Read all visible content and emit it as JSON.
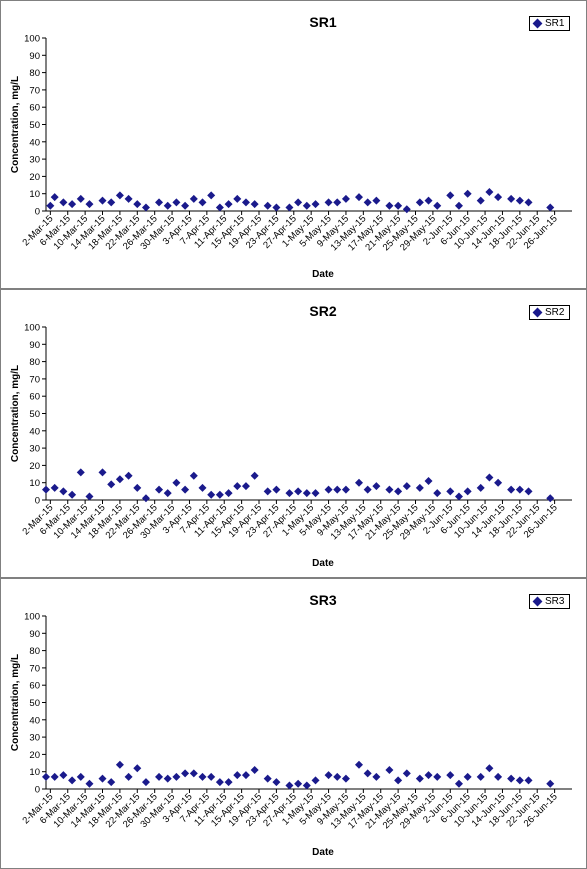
{
  "chart_data": [
    {
      "type": "scatter",
      "title": "SR1",
      "xlabel": "Date",
      "ylabel": "Concentration, mg/L",
      "ylim": [
        0,
        100
      ],
      "yticks": [
        0,
        10,
        20,
        30,
        40,
        50,
        60,
        70,
        80,
        90,
        100
      ],
      "xticks": [
        "2-Mar-15",
        "6-Mar-15",
        "10-Mar-15",
        "14-Mar-15",
        "18-Mar-15",
        "22-Mar-15",
        "26-Mar-15",
        "30-Mar-15",
        "3-Apr-15",
        "7-Apr-15",
        "11-Apr-15",
        "15-Apr-15",
        "19-Apr-15",
        "23-Apr-15",
        "27-Apr-15",
        "1-May-15",
        "5-May-15",
        "9-May-15",
        "13-May-15",
        "17-May-15",
        "21-May-15",
        "25-May-15",
        "29-May-15",
        "2-Jun-15",
        "6-Jun-15",
        "10-Jun-15",
        "14-Jun-15",
        "18-Jun-15",
        "22-Jun-15",
        "26-Jun-15"
      ],
      "grid": false,
      "legend": "top-right",
      "marker_color": "#1a1a8c",
      "series": [
        {
          "name": "SR1",
          "points": [
            {
              "x": "2-Mar-15",
              "y": 3
            },
            {
              "x": "3-Mar-15",
              "y": 8
            },
            {
              "x": "5-Mar-15",
              "y": 5
            },
            {
              "x": "7-Mar-15",
              "y": 4
            },
            {
              "x": "9-Mar-15",
              "y": 7
            },
            {
              "x": "11-Mar-15",
              "y": 4
            },
            {
              "x": "14-Mar-15",
              "y": 6
            },
            {
              "x": "16-Mar-15",
              "y": 5
            },
            {
              "x": "18-Mar-15",
              "y": 9
            },
            {
              "x": "20-Mar-15",
              "y": 7
            },
            {
              "x": "22-Mar-15",
              "y": 4
            },
            {
              "x": "24-Mar-15",
              "y": 2
            },
            {
              "x": "27-Mar-15",
              "y": 5
            },
            {
              "x": "29-Mar-15",
              "y": 3
            },
            {
              "x": "31-Mar-15",
              "y": 5
            },
            {
              "x": "2-Apr-15",
              "y": 3
            },
            {
              "x": "4-Apr-15",
              "y": 7
            },
            {
              "x": "6-Apr-15",
              "y": 5
            },
            {
              "x": "8-Apr-15",
              "y": 9
            },
            {
              "x": "10-Apr-15",
              "y": 2
            },
            {
              "x": "12-Apr-15",
              "y": 4
            },
            {
              "x": "14-Apr-15",
              "y": 7
            },
            {
              "x": "16-Apr-15",
              "y": 5
            },
            {
              "x": "18-Apr-15",
              "y": 4
            },
            {
              "x": "21-Apr-15",
              "y": 3
            },
            {
              "x": "23-Apr-15",
              "y": 2
            },
            {
              "x": "26-Apr-15",
              "y": 2
            },
            {
              "x": "28-Apr-15",
              "y": 5
            },
            {
              "x": "30-Apr-15",
              "y": 3
            },
            {
              "x": "2-May-15",
              "y": 4
            },
            {
              "x": "5-May-15",
              "y": 5
            },
            {
              "x": "7-May-15",
              "y": 5
            },
            {
              "x": "9-May-15",
              "y": 7
            },
            {
              "x": "12-May-15",
              "y": 8
            },
            {
              "x": "14-May-15",
              "y": 5
            },
            {
              "x": "16-May-15",
              "y": 6
            },
            {
              "x": "19-May-15",
              "y": 3
            },
            {
              "x": "21-May-15",
              "y": 3
            },
            {
              "x": "23-May-15",
              "y": 1
            },
            {
              "x": "26-May-15",
              "y": 5
            },
            {
              "x": "28-May-15",
              "y": 6
            },
            {
              "x": "30-May-15",
              "y": 3
            },
            {
              "x": "2-Jun-15",
              "y": 9
            },
            {
              "x": "4-Jun-15",
              "y": 3
            },
            {
              "x": "6-Jun-15",
              "y": 10
            },
            {
              "x": "9-Jun-15",
              "y": 6
            },
            {
              "x": "11-Jun-15",
              "y": 11
            },
            {
              "x": "13-Jun-15",
              "y": 8
            },
            {
              "x": "16-Jun-15",
              "y": 7
            },
            {
              "x": "18-Jun-15",
              "y": 6
            },
            {
              "x": "20-Jun-15",
              "y": 5
            },
            {
              "x": "25-Jun-15",
              "y": 2
            }
          ]
        }
      ]
    },
    {
      "type": "scatter",
      "title": "SR2",
      "xlabel": "Date",
      "ylabel": "Concentration, mg/L",
      "ylim": [
        0,
        100
      ],
      "yticks": [
        0,
        10,
        20,
        30,
        40,
        50,
        60,
        70,
        80,
        90,
        100
      ],
      "xticks": [
        "2-Mar-15",
        "6-Mar-15",
        "10-Mar-15",
        "14-Mar-15",
        "18-Mar-15",
        "22-Mar-15",
        "26-Mar-15",
        "30-Mar-15",
        "3-Apr-15",
        "7-Apr-15",
        "11-Apr-15",
        "15-Apr-15",
        "19-Apr-15",
        "23-Apr-15",
        "27-Apr-15",
        "1-May-15",
        "5-May-15",
        "9-May-15",
        "13-May-15",
        "17-May-15",
        "21-May-15",
        "25-May-15",
        "29-May-15",
        "2-Jun-15",
        "6-Jun-15",
        "10-Jun-15",
        "14-Jun-15",
        "18-Jun-15",
        "22-Jun-15",
        "26-Jun-15"
      ],
      "grid": false,
      "legend": "top-right",
      "marker_color": "#1a1a8c",
      "series": [
        {
          "name": "SR2",
          "points": [
            {
              "x": "1-Mar-15",
              "y": 6
            },
            {
              "x": "3-Mar-15",
              "y": 7
            },
            {
              "x": "5-Mar-15",
              "y": 5
            },
            {
              "x": "7-Mar-15",
              "y": 3
            },
            {
              "x": "9-Mar-15",
              "y": 16
            },
            {
              "x": "11-Mar-15",
              "y": 2
            },
            {
              "x": "14-Mar-15",
              "y": 16
            },
            {
              "x": "16-Mar-15",
              "y": 9
            },
            {
              "x": "18-Mar-15",
              "y": 12
            },
            {
              "x": "20-Mar-15",
              "y": 14
            },
            {
              "x": "22-Mar-15",
              "y": 7
            },
            {
              "x": "24-Mar-15",
              "y": 1
            },
            {
              "x": "27-Mar-15",
              "y": 6
            },
            {
              "x": "29-Mar-15",
              "y": 4
            },
            {
              "x": "31-Mar-15",
              "y": 10
            },
            {
              "x": "2-Apr-15",
              "y": 6
            },
            {
              "x": "4-Apr-15",
              "y": 14
            },
            {
              "x": "6-Apr-15",
              "y": 7
            },
            {
              "x": "8-Apr-15",
              "y": 3
            },
            {
              "x": "10-Apr-15",
              "y": 3
            },
            {
              "x": "12-Apr-15",
              "y": 4
            },
            {
              "x": "14-Apr-15",
              "y": 8
            },
            {
              "x": "16-Apr-15",
              "y": 8
            },
            {
              "x": "18-Apr-15",
              "y": 14
            },
            {
              "x": "21-Apr-15",
              "y": 5
            },
            {
              "x": "23-Apr-15",
              "y": 6
            },
            {
              "x": "26-Apr-15",
              "y": 4
            },
            {
              "x": "28-Apr-15",
              "y": 5
            },
            {
              "x": "30-Apr-15",
              "y": 4
            },
            {
              "x": "2-May-15",
              "y": 4
            },
            {
              "x": "5-May-15",
              "y": 6
            },
            {
              "x": "7-May-15",
              "y": 6
            },
            {
              "x": "9-May-15",
              "y": 6
            },
            {
              "x": "12-May-15",
              "y": 10
            },
            {
              "x": "14-May-15",
              "y": 6
            },
            {
              "x": "16-May-15",
              "y": 8
            },
            {
              "x": "19-May-15",
              "y": 6
            },
            {
              "x": "21-May-15",
              "y": 5
            },
            {
              "x": "23-May-15",
              "y": 8
            },
            {
              "x": "26-May-15",
              "y": 7
            },
            {
              "x": "28-May-15",
              "y": 11
            },
            {
              "x": "30-May-15",
              "y": 4
            },
            {
              "x": "2-Jun-15",
              "y": 5
            },
            {
              "x": "4-Jun-15",
              "y": 2
            },
            {
              "x": "6-Jun-15",
              "y": 5
            },
            {
              "x": "9-Jun-15",
              "y": 7
            },
            {
              "x": "11-Jun-15",
              "y": 13
            },
            {
              "x": "13-Jun-15",
              "y": 10
            },
            {
              "x": "16-Jun-15",
              "y": 6
            },
            {
              "x": "18-Jun-15",
              "y": 6
            },
            {
              "x": "20-Jun-15",
              "y": 5
            },
            {
              "x": "25-Jun-15",
              "y": 1
            }
          ]
        }
      ]
    },
    {
      "type": "scatter",
      "title": "SR3",
      "xlabel": "Date",
      "ylabel": "Concentration, mg/L",
      "ylim": [
        0,
        100
      ],
      "yticks": [
        0,
        10,
        20,
        30,
        40,
        50,
        60,
        70,
        80,
        90,
        100
      ],
      "xticks": [
        "2-Mar-15",
        "6-Mar-15",
        "10-Mar-15",
        "14-Mar-15",
        "18-Mar-15",
        "22-Mar-15",
        "26-Mar-15",
        "30-Mar-15",
        "3-Apr-15",
        "7-Apr-15",
        "11-Apr-15",
        "15-Apr-15",
        "19-Apr-15",
        "23-Apr-15",
        "27-Apr-15",
        "1-May-15",
        "5-May-15",
        "9-May-15",
        "13-May-15",
        "17-May-15",
        "21-May-15",
        "25-May-15",
        "29-May-15",
        "2-Jun-15",
        "6-Jun-15",
        "10-Jun-15",
        "14-Jun-15",
        "18-Jun-15",
        "22-Jun-15",
        "26-Jun-15"
      ],
      "grid": false,
      "legend": "top-right",
      "marker_color": "#1a1a8c",
      "series": [
        {
          "name": "SR3",
          "points": [
            {
              "x": "1-Mar-15",
              "y": 7
            },
            {
              "x": "3-Mar-15",
              "y": 7
            },
            {
              "x": "5-Mar-15",
              "y": 8
            },
            {
              "x": "7-Mar-15",
              "y": 5
            },
            {
              "x": "9-Mar-15",
              "y": 7
            },
            {
              "x": "11-Mar-15",
              "y": 3
            },
            {
              "x": "14-Mar-15",
              "y": 6
            },
            {
              "x": "16-Mar-15",
              "y": 4
            },
            {
              "x": "18-Mar-15",
              "y": 14
            },
            {
              "x": "20-Mar-15",
              "y": 7
            },
            {
              "x": "22-Mar-15",
              "y": 12
            },
            {
              "x": "24-Mar-15",
              "y": 4
            },
            {
              "x": "27-Mar-15",
              "y": 7
            },
            {
              "x": "29-Mar-15",
              "y": 6
            },
            {
              "x": "31-Mar-15",
              "y": 7
            },
            {
              "x": "2-Apr-15",
              "y": 9
            },
            {
              "x": "4-Apr-15",
              "y": 9
            },
            {
              "x": "6-Apr-15",
              "y": 7
            },
            {
              "x": "8-Apr-15",
              "y": 7
            },
            {
              "x": "10-Apr-15",
              "y": 4
            },
            {
              "x": "12-Apr-15",
              "y": 4
            },
            {
              "x": "14-Apr-15",
              "y": 8
            },
            {
              "x": "16-Apr-15",
              "y": 8
            },
            {
              "x": "18-Apr-15",
              "y": 11
            },
            {
              "x": "21-Apr-15",
              "y": 6
            },
            {
              "x": "23-Apr-15",
              "y": 4
            },
            {
              "x": "26-Apr-15",
              "y": 2
            },
            {
              "x": "28-Apr-15",
              "y": 3
            },
            {
              "x": "30-Apr-15",
              "y": 2
            },
            {
              "x": "2-May-15",
              "y": 5
            },
            {
              "x": "5-May-15",
              "y": 8
            },
            {
              "x": "7-May-15",
              "y": 7
            },
            {
              "x": "9-May-15",
              "y": 6
            },
            {
              "x": "12-May-15",
              "y": 14
            },
            {
              "x": "14-May-15",
              "y": 9
            },
            {
              "x": "16-May-15",
              "y": 7
            },
            {
              "x": "19-May-15",
              "y": 11
            },
            {
              "x": "21-May-15",
              "y": 5
            },
            {
              "x": "23-May-15",
              "y": 9
            },
            {
              "x": "26-May-15",
              "y": 6
            },
            {
              "x": "28-May-15",
              "y": 8
            },
            {
              "x": "30-May-15",
              "y": 7
            },
            {
              "x": "2-Jun-15",
              "y": 8
            },
            {
              "x": "4-Jun-15",
              "y": 3
            },
            {
              "x": "6-Jun-15",
              "y": 7
            },
            {
              "x": "9-Jun-15",
              "y": 7
            },
            {
              "x": "11-Jun-15",
              "y": 12
            },
            {
              "x": "13-Jun-15",
              "y": 7
            },
            {
              "x": "16-Jun-15",
              "y": 6
            },
            {
              "x": "18-Jun-15",
              "y": 5
            },
            {
              "x": "20-Jun-15",
              "y": 5
            },
            {
              "x": "25-Jun-15",
              "y": 3
            }
          ]
        }
      ]
    }
  ]
}
